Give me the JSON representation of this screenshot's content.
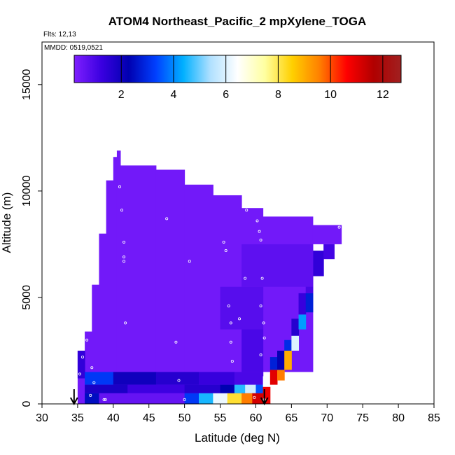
{
  "chart_data": {
    "type": "heatmap",
    "title": "ATOM4 Northeast_Pacific_2 mpXylene_TOGA",
    "flights_label": "Flts: 12,13",
    "dates_label": "MMDD: 0519,0521",
    "xlabel": "Latitude (deg N)",
    "ylabel": "Altitude (m)",
    "xlim": [
      30,
      85
    ],
    "ylim": [
      0,
      17000
    ],
    "x_ticks": [
      "30",
      "35",
      "40",
      "45",
      "50",
      "55",
      "60",
      "65",
      "70",
      "75",
      "80",
      "85"
    ],
    "y_ticks": [
      "0",
      "5000",
      "10000",
      "15000"
    ],
    "colorbar": {
      "range": [
        0.2,
        12.7
      ],
      "ticks": [
        "2",
        "4",
        "6",
        "8",
        "10",
        "12"
      ],
      "colors": [
        "#7f1fff",
        "#3a00e0",
        "#0000b0",
        "#0040ff",
        "#00b0ff",
        "#b0e0ff",
        "#ffffff",
        "#ffffa0",
        "#ffd000",
        "#ff8000",
        "#ff0000",
        "#b00000",
        "#a02020"
      ]
    },
    "grid": false,
    "legend": "none",
    "field_description_value": 0.4,
    "columns": [
      {
        "lat0": 35.0,
        "lat1": 36.0,
        "alt0": 0,
        "alt1": 2500
      },
      {
        "lat0": 36.0,
        "lat1": 37.0,
        "alt0": 0,
        "alt1": 3400
      },
      {
        "lat0": 37.0,
        "lat1": 38.0,
        "alt0": 0,
        "alt1": 5600
      },
      {
        "lat0": 38.0,
        "lat1": 39.0,
        "alt0": 0,
        "alt1": 8000
      },
      {
        "lat0": 39.0,
        "lat1": 40.0,
        "alt0": 0,
        "alt1": 10500
      },
      {
        "lat0": 40.0,
        "lat1": 40.5,
        "alt0": 0,
        "alt1": 11600
      },
      {
        "lat0": 40.5,
        "lat1": 41.0,
        "alt0": 0,
        "alt1": 11900
      },
      {
        "lat0": 41.0,
        "lat1": 46.0,
        "alt0": 0,
        "alt1": 11200
      },
      {
        "lat0": 46.0,
        "lat1": 50.0,
        "alt0": 0,
        "alt1": 11000
      },
      {
        "lat0": 50.0,
        "lat1": 54.0,
        "alt0": 0,
        "alt1": 10300
      },
      {
        "lat0": 54.0,
        "lat1": 58.0,
        "alt0": 0,
        "alt1": 9800
      },
      {
        "lat0": 58.0,
        "lat1": 61.0,
        "alt0": 0,
        "alt1": 9200
      },
      {
        "lat0": 61.0,
        "lat1": 68.0,
        "alt0": 1500,
        "alt1": 8800
      },
      {
        "lat0": 68.0,
        "lat1": 72.0,
        "alt0": 7500,
        "alt1": 8400
      }
    ],
    "cells": [
      {
        "lat0": 35.0,
        "lat1": 36.0,
        "alt0": 1200,
        "alt1": 2500,
        "v": 1.4
      },
      {
        "lat0": 36.0,
        "lat1": 40.0,
        "alt0": 900,
        "alt1": 1500,
        "v": 3.2
      },
      {
        "lat0": 40.0,
        "lat1": 46.0,
        "alt0": 900,
        "alt1": 1500,
        "v": 2.0
      },
      {
        "lat0": 46.0,
        "lat1": 52.0,
        "alt0": 900,
        "alt1": 1500,
        "v": 1.6
      },
      {
        "lat0": 52.0,
        "lat1": 57.0,
        "alt0": 900,
        "alt1": 1500,
        "v": 1.3
      },
      {
        "lat0": 57.0,
        "lat1": 61.0,
        "alt0": 900,
        "alt1": 1500,
        "v": 1.0
      },
      {
        "lat0": 36.0,
        "lat1": 42.0,
        "alt0": 500,
        "alt1": 900,
        "v": 1.8
      },
      {
        "lat0": 42.0,
        "lat1": 50.0,
        "alt0": 500,
        "alt1": 900,
        "v": 1.2
      },
      {
        "lat0": 50.0,
        "lat1": 55.0,
        "alt0": 500,
        "alt1": 900,
        "v": 1.6
      },
      {
        "lat0": 55.0,
        "lat1": 57.0,
        "alt0": 500,
        "alt1": 900,
        "v": 2.3
      },
      {
        "lat0": 57.0,
        "lat1": 58.5,
        "alt0": 500,
        "alt1": 900,
        "v": 4.6
      },
      {
        "lat0": 58.5,
        "lat1": 60.0,
        "alt0": 500,
        "alt1": 900,
        "v": 5.8
      },
      {
        "lat0": 60.0,
        "lat1": 61.0,
        "alt0": 500,
        "alt1": 900,
        "v": 3.5
      },
      {
        "lat0": 36.0,
        "lat1": 38.0,
        "alt0": 0,
        "alt1": 500,
        "v": 2.5
      },
      {
        "lat0": 38.0,
        "lat1": 50.0,
        "alt0": 0,
        "alt1": 500,
        "v": 0.6
      },
      {
        "lat0": 50.0,
        "lat1": 52.0,
        "alt0": 0,
        "alt1": 500,
        "v": 3.2
      },
      {
        "lat0": 52.0,
        "lat1": 54.0,
        "alt0": 0,
        "alt1": 500,
        "v": 4.5
      },
      {
        "lat0": 54.0,
        "lat1": 56.0,
        "alt0": 0,
        "alt1": 500,
        "v": 6.2
      },
      {
        "lat0": 56.0,
        "lat1": 58.0,
        "alt0": 0,
        "alt1": 500,
        "v": 8.2
      },
      {
        "lat0": 58.0,
        "lat1": 59.5,
        "alt0": 0,
        "alt1": 500,
        "v": 9.6
      },
      {
        "lat0": 59.5,
        "lat1": 61.0,
        "alt0": 0,
        "alt1": 500,
        "v": 11.2
      },
      {
        "lat0": 61.0,
        "lat1": 62.0,
        "alt0": 0,
        "alt1": 800,
        "v": 10.8
      },
      {
        "lat0": 61.0,
        "lat1": 62.0,
        "alt0": 800,
        "alt1": 1300,
        "v": 6.4
      },
      {
        "lat0": 62.0,
        "lat1": 63.0,
        "alt0": 900,
        "alt1": 1600,
        "v": 11.0
      },
      {
        "lat0": 62.0,
        "lat1": 63.0,
        "alt0": 1600,
        "alt1": 2200,
        "v": 2.8
      },
      {
        "lat0": 63.0,
        "lat1": 64.0,
        "alt0": 1100,
        "alt1": 1600,
        "v": 9.6
      },
      {
        "lat0": 63.0,
        "lat1": 64.0,
        "alt0": 1600,
        "alt1": 2500,
        "v": 2.2
      },
      {
        "lat0": 64.0,
        "lat1": 65.0,
        "alt0": 1600,
        "alt1": 2500,
        "v": 9.0
      },
      {
        "lat0": 64.0,
        "lat1": 65.0,
        "alt0": 2500,
        "alt1": 3000,
        "v": 3.0
      },
      {
        "lat0": 65.0,
        "lat1": 66.0,
        "alt0": 2500,
        "alt1": 3200,
        "v": 6.0
      },
      {
        "lat0": 65.0,
        "lat1": 66.0,
        "alt0": 3200,
        "alt1": 4000,
        "v": 1.6
      },
      {
        "lat0": 66.0,
        "lat1": 67.0,
        "alt0": 3500,
        "alt1": 4200,
        "v": 4.2
      },
      {
        "lat0": 66.0,
        "lat1": 67.0,
        "alt0": 4200,
        "alt1": 5200,
        "v": 1.3
      },
      {
        "lat0": 67.0,
        "lat1": 68.0,
        "alt0": 4300,
        "alt1": 5200,
        "v": 2.8
      },
      {
        "lat0": 67.0,
        "lat1": 68.0,
        "alt0": 5200,
        "alt1": 6200,
        "v": 1.0
      },
      {
        "lat0": 68.0,
        "lat1": 69.5,
        "alt0": 6000,
        "alt1": 7200,
        "v": 1.4
      },
      {
        "lat0": 69.5,
        "lat1": 71.0,
        "alt0": 6800,
        "alt1": 7500,
        "v": 1.1
      },
      {
        "lat0": 58.0,
        "lat1": 61.0,
        "alt0": 1500,
        "alt1": 3500,
        "v": 1.0
      },
      {
        "lat0": 55.0,
        "lat1": 61.0,
        "alt0": 3500,
        "alt1": 5500,
        "v": 0.8
      },
      {
        "lat0": 58.0,
        "lat1": 68.0,
        "alt0": 5500,
        "alt1": 7500,
        "v": 0.7
      }
    ],
    "sample_points": [
      [
        40.3,
        11.8
      ],
      [
        38.3,
        10.1
      ],
      [
        40.9,
        10.2
      ],
      [
        41.2,
        9.1
      ],
      [
        47.5,
        8.7
      ],
      [
        41.5,
        7.6
      ],
      [
        41.5,
        6.9
      ],
      [
        41.5,
        6.7
      ],
      [
        50.7,
        6.7
      ],
      [
        41.7,
        3.8
      ],
      [
        48.8,
        2.9
      ],
      [
        55.5,
        7.6
      ],
      [
        55.8,
        7.2
      ],
      [
        58.7,
        9.1
      ],
      [
        60.2,
        8.6
      ],
      [
        60.5,
        8.1
      ],
      [
        60.7,
        7.7
      ],
      [
        58.5,
        5.9
      ],
      [
        56.2,
        4.6
      ],
      [
        56.5,
        3.8
      ],
      [
        57.7,
        4.0
      ],
      [
        60.9,
        5.9
      ],
      [
        60.7,
        4.6
      ],
      [
        61.1,
        3.8
      ],
      [
        61.2,
        3.1
      ],
      [
        56.5,
        2.9
      ],
      [
        56.7,
        2.0
      ],
      [
        60.7,
        2.3
      ],
      [
        36.3,
        3.0
      ],
      [
        35.7,
        2.2
      ],
      [
        37.0,
        1.7
      ],
      [
        35.3,
        1.4
      ],
      [
        34.7,
        2.6
      ],
      [
        37.3,
        1.0
      ],
      [
        49.2,
        1.1
      ],
      [
        36.8,
        0.4
      ],
      [
        38.7,
        0.2
      ],
      [
        38.9,
        0.2
      ],
      [
        71.7,
        8.3
      ],
      [
        59.8,
        0.3
      ],
      [
        61.2,
        0.2
      ],
      [
        50,
        0.2
      ]
    ],
    "markers": [
      {
        "lat": 34.5,
        "label": "takeoff-arrow"
      },
      {
        "lat": 61.2,
        "label": "landing-arrow"
      }
    ]
  }
}
